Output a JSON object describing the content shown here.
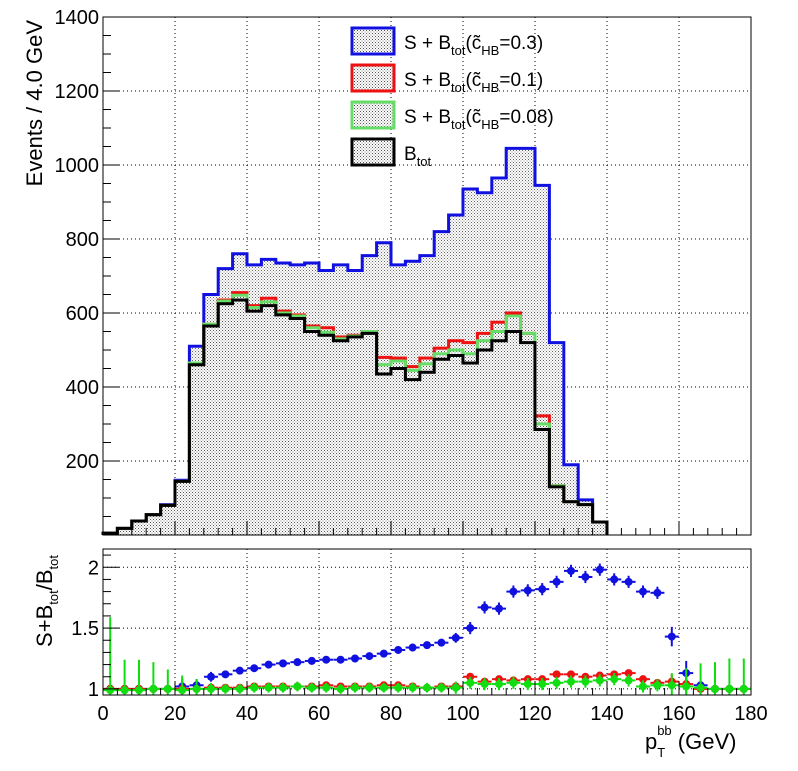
{
  "colors": {
    "s03": "#1010e0",
    "s01": "#ee1111",
    "s008": "#66dd66",
    "btot": "#000000",
    "s008_points": "#11dd11"
  },
  "chart_data": [
    {
      "type": "histogram",
      "bin_width": 4,
      "x_range": [
        0,
        180
      ],
      "ylim": [
        0,
        1400
      ],
      "ylabel": "Events / 4.0 GeV",
      "y_ticks": [
        200,
        400,
        600,
        800,
        1000,
        1200,
        1400
      ],
      "x_ticks": [
        0,
        20,
        40,
        60,
        80,
        100,
        120,
        140,
        160,
        180
      ],
      "grid": true,
      "legend_position": "top-right",
      "legend": [
        {
          "key": "s03",
          "main": "S + B",
          "sub": "tot",
          "open": "(c̃",
          "sub2": "HB",
          "close": "=0.3)"
        },
        {
          "key": "s01",
          "main": "S + B",
          "sub": "tot",
          "open": "(c̃",
          "sub2": "HB",
          "close": "=0.1)"
        },
        {
          "key": "s008",
          "main": "S + B",
          "sub": "tot",
          "open": "(c̃",
          "sub2": "HB",
          "close": "=0.08)"
        },
        {
          "key": "btot",
          "main": "B",
          "sub": "tot",
          "open": "",
          "sub2": "",
          "close": ""
        }
      ],
      "series": [
        {
          "key": "btot",
          "name": "B_tot",
          "values": [
            5,
            18,
            38,
            55,
            80,
            145,
            460,
            565,
            625,
            635,
            605,
            620,
            595,
            585,
            550,
            540,
            525,
            535,
            545,
            435,
            450,
            420,
            440,
            475,
            485,
            465,
            500,
            525,
            550,
            520,
            285,
            130,
            90,
            82,
            35
          ]
        },
        {
          "key": "s008",
          "name": "S + B_tot (c̃_HB=0.08)",
          "values": [
            5,
            18,
            38,
            55,
            80,
            145,
            465,
            570,
            632,
            648,
            615,
            630,
            600,
            592,
            560,
            548,
            530,
            538,
            550,
            460,
            470,
            445,
            462,
            490,
            500,
            490,
            525,
            550,
            592,
            545,
            300,
            133,
            90,
            82,
            35
          ]
        },
        {
          "key": "s01",
          "name": "S + B_tot (c̃_HB=0.1)",
          "values": [
            5,
            18,
            38,
            55,
            80,
            145,
            465,
            570,
            635,
            655,
            620,
            640,
            605,
            595,
            565,
            560,
            535,
            540,
            548,
            480,
            478,
            455,
            478,
            505,
            525,
            520,
            545,
            575,
            600,
            545,
            322,
            133,
            90,
            82,
            35
          ]
        },
        {
          "key": "s03",
          "name": "S + B_tot (c̃_HB=0.3)",
          "values": [
            5,
            18,
            38,
            55,
            82,
            148,
            510,
            650,
            720,
            760,
            730,
            745,
            735,
            730,
            735,
            715,
            730,
            715,
            755,
            790,
            730,
            740,
            755,
            820,
            865,
            935,
            925,
            965,
            1045,
            1045,
            945,
            520,
            190,
            95,
            35
          ]
        }
      ]
    },
    {
      "type": "scatter",
      "x_range": [
        0,
        180
      ],
      "ylim": [
        0.95,
        2.15
      ],
      "ylabel_main": "S+B",
      "ylabel_sub1": "tot",
      "ylabel_mid": "/B",
      "ylabel_sub2": "tot",
      "xlabel_main": "p",
      "xlabel_sub": "T",
      "xlabel_sup": "bb",
      "xlabel_tail": " (GeV)",
      "y_ticks": [
        1,
        1.5,
        2
      ],
      "y_tick_labels": [
        "1",
        "1.5",
        "2"
      ],
      "grid": true,
      "series": [
        {
          "key": "s03",
          "name": "c̃_HB=0.3",
          "x": [
            2,
            6,
            10,
            14,
            18,
            22,
            26,
            30,
            34,
            38,
            42,
            46,
            50,
            54,
            58,
            62,
            66,
            70,
            74,
            78,
            82,
            86,
            90,
            94,
            98,
            102,
            106,
            110,
            114,
            118,
            122,
            126,
            130,
            134,
            138,
            142,
            146,
            150,
            154,
            158,
            162,
            166,
            170,
            174,
            178
          ],
          "y": [
            1.0,
            1.0,
            1.0,
            1.0,
            1.0,
            1.02,
            1.03,
            1.1,
            1.12,
            1.15,
            1.17,
            1.2,
            1.21,
            1.22,
            1.23,
            1.24,
            1.24,
            1.25,
            1.27,
            1.29,
            1.32,
            1.34,
            1.36,
            1.38,
            1.42,
            1.5,
            1.67,
            1.66,
            1.8,
            1.81,
            1.82,
            1.88,
            1.97,
            1.92,
            1.98,
            1.9,
            1.88,
            1.8,
            1.79,
            1.43,
            1.13,
            1.03,
            1.0,
            1.0,
            1.0
          ],
          "err": [
            0.0,
            0.0,
            0.0,
            0.0,
            0.0,
            0.06,
            0.05,
            0.04,
            0.03,
            0.03,
            0.03,
            0.03,
            0.03,
            0.03,
            0.03,
            0.03,
            0.03,
            0.03,
            0.03,
            0.03,
            0.03,
            0.03,
            0.03,
            0.03,
            0.04,
            0.05,
            0.05,
            0.05,
            0.05,
            0.05,
            0.05,
            0.05,
            0.05,
            0.05,
            0.05,
            0.05,
            0.05,
            0.05,
            0.05,
            0.08,
            0.1,
            0.0,
            0.0,
            0.0,
            0.0
          ]
        },
        {
          "key": "s01",
          "name": "c̃_HB=0.1",
          "x": [
            2,
            6,
            10,
            14,
            18,
            22,
            26,
            30,
            34,
            38,
            42,
            46,
            50,
            54,
            58,
            62,
            66,
            70,
            74,
            78,
            82,
            86,
            90,
            94,
            98,
            102,
            106,
            110,
            114,
            118,
            122,
            126,
            130,
            134,
            138,
            142,
            146,
            150,
            154,
            158,
            162,
            166,
            170,
            174,
            178
          ],
          "y": [
            1.0,
            1.0,
            1.0,
            1.0,
            1.0,
            1.0,
            1.0,
            1.01,
            1.01,
            1.01,
            1.02,
            1.02,
            1.02,
            1.02,
            1.02,
            1.03,
            1.02,
            1.02,
            1.02,
            1.03,
            1.03,
            1.02,
            1.01,
            1.02,
            1.02,
            1.1,
            1.06,
            1.08,
            1.07,
            1.08,
            1.08,
            1.12,
            1.12,
            1.1,
            1.11,
            1.12,
            1.13,
            1.08,
            1.05,
            1.06,
            1.04,
            1.0,
            1.0,
            1.0,
            1.0
          ],
          "err": [
            0.0,
            0.0,
            0.0,
            0.0,
            0.0,
            0.0,
            0.0,
            0.02,
            0.02,
            0.02,
            0.02,
            0.02,
            0.02,
            0.02,
            0.02,
            0.02,
            0.02,
            0.02,
            0.02,
            0.02,
            0.02,
            0.02,
            0.02,
            0.02,
            0.02,
            0.03,
            0.03,
            0.03,
            0.03,
            0.03,
            0.03,
            0.03,
            0.03,
            0.03,
            0.03,
            0.03,
            0.03,
            0.03,
            0.03,
            0.06,
            0.08,
            0.0,
            0.0,
            0.0,
            0.0
          ]
        },
        {
          "key": "s008",
          "name": "c̃_HB=0.08",
          "x": [
            2,
            6,
            10,
            14,
            18,
            22,
            26,
            30,
            34,
            38,
            42,
            46,
            50,
            54,
            58,
            62,
            66,
            70,
            74,
            78,
            82,
            86,
            90,
            94,
            98,
            102,
            106,
            110,
            114,
            118,
            122,
            126,
            130,
            134,
            138,
            142,
            146,
            150,
            154,
            158,
            162,
            166,
            170,
            174,
            178
          ],
          "y": [
            0.99,
            0.99,
            0.99,
            1.0,
            1.0,
            0.99,
            1.0,
            1.0,
            1.0,
            1.0,
            1.01,
            1.01,
            1.01,
            1.02,
            1.01,
            1.01,
            1.0,
            1.01,
            1.01,
            1.01,
            1.01,
            1.01,
            1.01,
            1.01,
            1.01,
            1.05,
            1.04,
            1.04,
            1.05,
            1.04,
            1.04,
            1.05,
            1.06,
            1.06,
            1.07,
            1.08,
            1.07,
            1.02,
            1.03,
            1.03,
            1.02,
            1.01,
            1.0,
            1.0,
            1.0
          ],
          "err": [
            0.6,
            0.25,
            0.25,
            0.22,
            0.16,
            0.12,
            0.08,
            0.05,
            0.04,
            0.04,
            0.04,
            0.04,
            0.04,
            0.04,
            0.04,
            0.04,
            0.04,
            0.04,
            0.04,
            0.04,
            0.04,
            0.04,
            0.04,
            0.04,
            0.05,
            0.05,
            0.05,
            0.05,
            0.05,
            0.05,
            0.05,
            0.05,
            0.05,
            0.05,
            0.05,
            0.05,
            0.05,
            0.05,
            0.05,
            0.1,
            0.15,
            0.2,
            0.22,
            0.25,
            0.25
          ]
        }
      ]
    }
  ]
}
